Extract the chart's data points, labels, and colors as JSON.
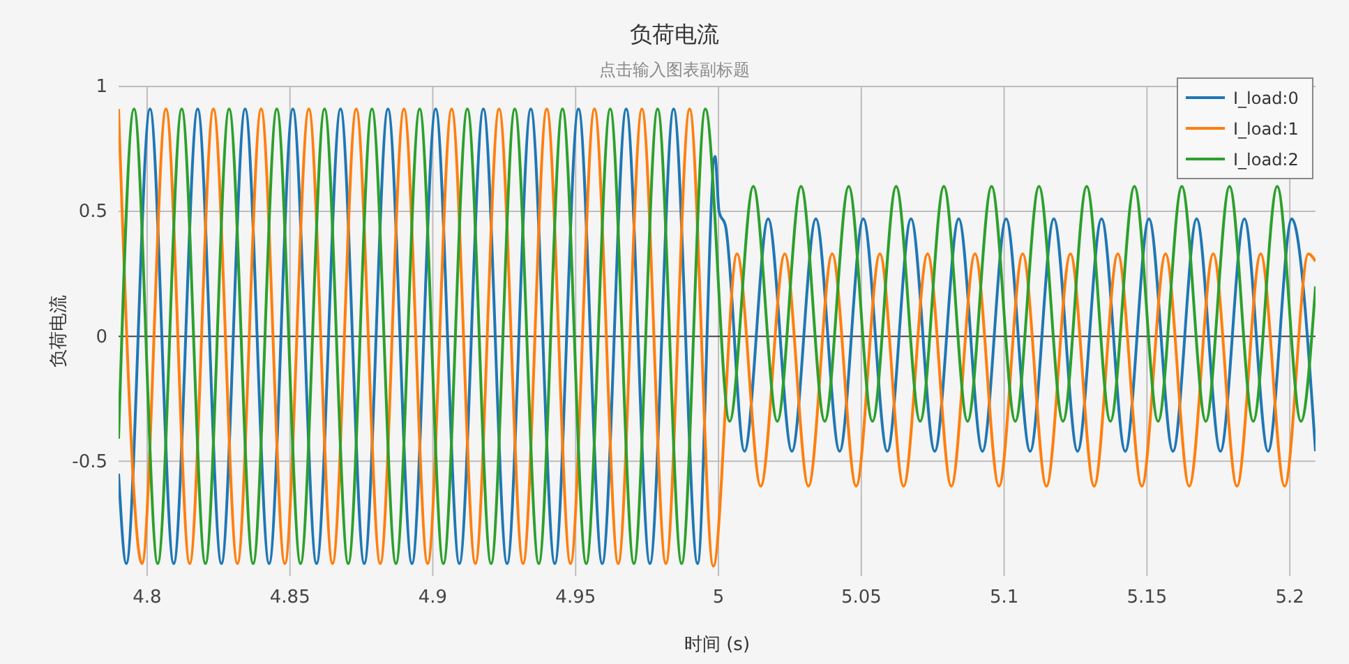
{
  "chart_data": {
    "type": "line",
    "title": "负荷电流",
    "subtitle": "点击输入图表副标题",
    "xlabel": "时间 (s)",
    "ylabel": "负荷电流",
    "xlim": [
      4.79,
      5.209
    ],
    "xticks": [
      4.8,
      4.85,
      4.9,
      4.95,
      5,
      5.05,
      5.1,
      5.15,
      5.2
    ],
    "ylim": [
      -0.96,
      1
    ],
    "yticks": [
      -0.5,
      0,
      0.5,
      1
    ],
    "grid": true,
    "legend": "top right",
    "line_style": "solid",
    "series": [
      {
        "name": "I_load:0",
        "color": "#1f77b4",
        "x": [
          4.79,
          4.7927,
          4.801,
          4.8093,
          4.8177,
          4.826,
          4.8343,
          4.8427,
          4.851,
          4.8593,
          4.8677,
          4.876,
          4.8843,
          4.8927,
          4.901,
          4.9093,
          4.9177,
          4.926,
          4.9343,
          4.9427,
          4.951,
          4.9593,
          4.9677,
          4.976,
          4.9843,
          4.9927,
          4.9988,
          5.0002,
          5.0025,
          5.0091,
          5.0174,
          5.0257,
          5.0341,
          5.0424,
          5.0507,
          5.0591,
          5.0674,
          5.0757,
          5.0841,
          5.0924,
          5.1007,
          5.1091,
          5.1174,
          5.1257,
          5.1341,
          5.1424,
          5.1507,
          5.1591,
          5.1674,
          5.1757,
          5.1841,
          5.1924,
          5.2007,
          5.209
        ],
        "values": [
          -0.55,
          -0.91,
          0.91,
          -0.91,
          0.91,
          -0.91,
          0.91,
          -0.91,
          0.91,
          -0.91,
          0.91,
          -0.91,
          0.91,
          -0.91,
          0.91,
          -0.91,
          0.91,
          -0.91,
          0.91,
          -0.91,
          0.91,
          -0.91,
          0.91,
          -0.91,
          0.91,
          -0.91,
          0.72,
          0.5,
          0.44,
          -0.46,
          0.47,
          -0.46,
          0.47,
          -0.46,
          0.47,
          -0.46,
          0.47,
          -0.46,
          0.47,
          -0.46,
          0.47,
          -0.46,
          0.47,
          -0.46,
          0.47,
          -0.46,
          0.47,
          -0.46,
          0.47,
          -0.46,
          0.47,
          -0.46,
          0.47,
          -0.46
        ]
      },
      {
        "name": "I_load:1",
        "color": "#ff7f0e",
        "x": [
          4.79,
          4.7982,
          4.8066,
          4.8149,
          4.8232,
          4.8316,
          4.8399,
          4.8482,
          4.8566,
          4.8649,
          4.8732,
          4.8816,
          4.8899,
          4.8982,
          4.9066,
          4.9149,
          4.9232,
          4.9316,
          4.9399,
          4.9482,
          4.9566,
          4.9649,
          4.9732,
          4.9816,
          4.9899,
          4.9982,
          5.0065,
          5.0148,
          5.0232,
          5.0315,
          5.0398,
          5.0482,
          5.0565,
          5.0648,
          5.0732,
          5.0815,
          5.0898,
          5.0982,
          5.1065,
          5.1148,
          5.1232,
          5.1315,
          5.1398,
          5.1482,
          5.1565,
          5.1648,
          5.1732,
          5.1815,
          5.1898,
          5.1982,
          5.2065,
          5.209
        ],
        "values": [
          0.91,
          -0.91,
          0.91,
          -0.91,
          0.91,
          -0.91,
          0.91,
          -0.91,
          0.91,
          -0.91,
          0.91,
          -0.91,
          0.91,
          -0.91,
          0.91,
          -0.91,
          0.91,
          -0.91,
          0.91,
          -0.91,
          0.91,
          -0.91,
          0.91,
          -0.91,
          0.91,
          -0.92,
          0.33,
          -0.6,
          0.33,
          -0.6,
          0.33,
          -0.6,
          0.33,
          -0.6,
          0.33,
          -0.6,
          0.33,
          -0.6,
          0.33,
          -0.6,
          0.33,
          -0.6,
          0.33,
          -0.6,
          0.33,
          -0.6,
          0.33,
          -0.6,
          0.33,
          -0.6,
          0.33,
          0.3
        ]
      },
      {
        "name": "I_load:2",
        "color": "#2ca02c",
        "x": [
          4.79,
          4.7954,
          4.8037,
          4.8121,
          4.8204,
          4.8287,
          4.8371,
          4.8454,
          4.8537,
          4.8621,
          4.8704,
          4.8787,
          4.8871,
          4.8954,
          4.9037,
          4.9121,
          4.9204,
          4.9287,
          4.9371,
          4.9454,
          4.9537,
          4.9621,
          4.9704,
          4.9787,
          4.9871,
          4.9954,
          5.0039,
          5.0122,
          5.0206,
          5.0289,
          5.0372,
          5.0456,
          5.0539,
          5.0622,
          5.0706,
          5.0789,
          5.0872,
          5.0956,
          5.1039,
          5.1122,
          5.1206,
          5.1289,
          5.1372,
          5.1456,
          5.1539,
          5.1622,
          5.1706,
          5.1789,
          5.1872,
          5.1956,
          5.2039,
          5.209
        ],
        "values": [
          -0.41,
          0.91,
          -0.91,
          0.91,
          -0.91,
          0.91,
          -0.91,
          0.91,
          -0.91,
          0.91,
          -0.91,
          0.91,
          -0.91,
          0.91,
          -0.91,
          0.91,
          -0.91,
          0.91,
          -0.91,
          0.91,
          -0.91,
          0.91,
          -0.91,
          0.91,
          -0.91,
          0.91,
          -0.34,
          0.6,
          -0.34,
          0.6,
          -0.34,
          0.6,
          -0.34,
          0.6,
          -0.34,
          0.6,
          -0.34,
          0.6,
          -0.34,
          0.6,
          -0.34,
          0.6,
          -0.34,
          0.6,
          -0.34,
          0.6,
          -0.34,
          0.6,
          -0.34,
          0.6,
          -0.34,
          0.2
        ]
      }
    ]
  }
}
